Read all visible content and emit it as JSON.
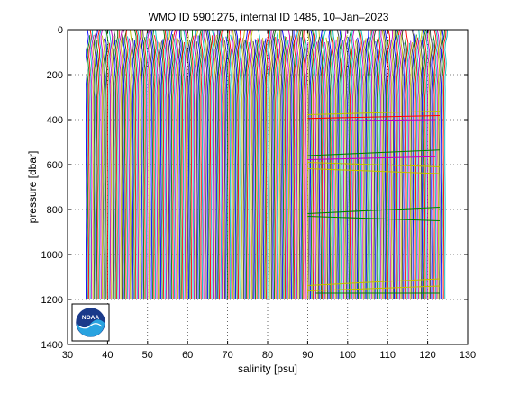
{
  "chart_data": {
    "type": "line",
    "title": "WMO ID 5901275, internal ID 1485, 10–Jan–2023",
    "xlabel": "salinity [psu]",
    "ylabel": "pressure [dbar]",
    "xlim": [
      30,
      130
    ],
    "ylim": [
      0,
      1400
    ],
    "y_reversed": true,
    "grid": true,
    "grid_style": "dotted",
    "legend": "none",
    "xticks": [
      30,
      40,
      50,
      60,
      70,
      80,
      90,
      100,
      110,
      120,
      130
    ],
    "yticks": [
      0,
      200,
      400,
      600,
      800,
      1000,
      1200,
      1400
    ],
    "profile_colors": [
      "#0000ff",
      "#008000",
      "#ff0000",
      "#00bfbf",
      "#bf00bf",
      "#bfbf00",
      "#404040"
    ],
    "profiles": {
      "count": 90,
      "x_first": 35.0,
      "x_last": 124.0,
      "offset_per_profile": 1.0,
      "base_salinity_deep": 34.9,
      "base_salinity_surface": 35.2,
      "pressure_max": 1200
    },
    "anomaly_segments": [
      {
        "x": [
          90,
          123
        ],
        "y": [
          378,
          362
        ],
        "color": "#bfbf00"
      },
      {
        "x": [
          90,
          123
        ],
        "y": [
          395,
          382
        ],
        "color": "#ff0000"
      },
      {
        "x": [
          95,
          122
        ],
        "y": [
          405,
          400
        ],
        "color": "#bf00bf"
      },
      {
        "x": [
          90,
          123
        ],
        "y": [
          560,
          535
        ],
        "color": "#008000"
      },
      {
        "x": [
          90,
          123
        ],
        "y": [
          590,
          610
        ],
        "color": "#bfbf00"
      },
      {
        "x": [
          90,
          122
        ],
        "y": [
          578,
          565
        ],
        "color": "#bf00bf"
      },
      {
        "x": [
          90,
          123
        ],
        "y": [
          618,
          640
        ],
        "color": "#bfbf00"
      },
      {
        "x": [
          90,
          123
        ],
        "y": [
          818,
          790
        ],
        "color": "#008000"
      },
      {
        "x": [
          90,
          123
        ],
        "y": [
          830,
          850
        ],
        "color": "#008000"
      },
      {
        "x": [
          90,
          123
        ],
        "y": [
          1138,
          1108
        ],
        "color": "#bfbf00"
      },
      {
        "x": [
          90,
          123
        ],
        "y": [
          1162,
          1140
        ],
        "color": "#bfbf00"
      },
      {
        "x": [
          92,
          123
        ],
        "y": [
          1172,
          1172
        ],
        "color": "#008000"
      }
    ]
  },
  "logo": {
    "text": "NOAA"
  }
}
